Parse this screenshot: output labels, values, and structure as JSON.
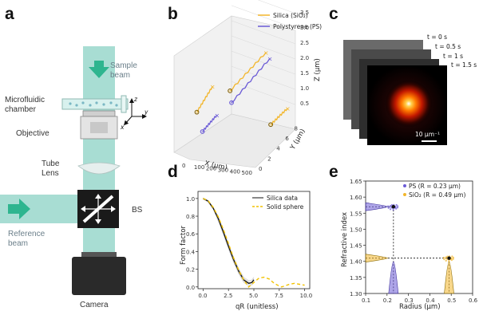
{
  "panels": {
    "a": {
      "letter": "a",
      "labels": {
        "sample_beam": "Sample\nbeam",
        "microfluidic": "Microfluidic\nchamber",
        "objective": "Objective",
        "tube_lens": "Tube\nLens",
        "bs": "BS",
        "reference_beam": "Reference\nbeam",
        "camera": "Camera",
        "axis_z": "z",
        "axis_y": "y",
        "axis_x": "x"
      },
      "colors": {
        "beam": "#a8ddd3",
        "beam_arrow": "#2eb58f",
        "chamber": "#d8f1ee",
        "dark": "#2a2a2a"
      }
    },
    "b": {
      "letter": "b",
      "legend": [
        "Silica (SiO₂)",
        "Polystyrene (PS)"
      ],
      "x_axis_label": "X (μm)",
      "y_axis_label": "Y (μm)",
      "z_axis_label": "Z (μm)",
      "x_ticks": [
        "0",
        "100",
        "200",
        "300",
        "400",
        "500"
      ],
      "y_ticks": [
        "0",
        "2",
        "4",
        "6",
        "8"
      ],
      "z_ticks": [
        "0.5",
        "1.0",
        "1.5",
        "2.0",
        "2.5",
        "3.0",
        "3.5"
      ]
    },
    "c": {
      "letter": "c",
      "time_labels": [
        "t = 0 s",
        "t = 0.5 s",
        "t = 1 s",
        "t = 1.5 s"
      ],
      "scalebar": "10 μm⁻¹"
    },
    "d": {
      "letter": "d",
      "x_axis_label": "qR (unitless)",
      "y_axis_label": "Form factor",
      "legend": [
        "Silica data",
        "Solid sphere"
      ],
      "x_ticks": [
        "0.0",
        "2.5",
        "5.0",
        "7.5",
        "10.0"
      ],
      "y_ticks": [
        "0.0",
        "0.2",
        "0.4",
        "0.6",
        "0.8",
        "1.0"
      ]
    },
    "e": {
      "letter": "e",
      "x_axis_label": "Radius (μm)",
      "y_axis_label": "Refractive index",
      "legend": [
        "PS (R = 0.23 μm)",
        "SiO₂ (R = 0.49 μm)"
      ],
      "x_ticks": [
        "0.1",
        "0.2",
        "0.3",
        "0.4",
        "0.5",
        "0.6"
      ],
      "y_ticks": [
        "1.30",
        "1.35",
        "1.40",
        "1.45",
        "1.50",
        "1.55",
        "1.60",
        "1.65"
      ]
    }
  },
  "colors": {
    "silica": "#f2b62b",
    "ps": "#6b5bd6",
    "solid_sphere": "#f2c200"
  },
  "chart_data": [
    {
      "type": "line",
      "panel": "b",
      "xlabel": "X (μm)",
      "ylabel": "Y (μm)",
      "zlabel": "Z (μm)",
      "xlim": [
        0,
        550
      ],
      "ylim": [
        0,
        9
      ],
      "zlim": [
        0.4,
        3.6
      ],
      "series": [
        {
          "name": "Silica (SiO₂)",
          "color": "#f2b62b",
          "x": [
            20,
            150
          ],
          "y": [
            1.0,
            1.0
          ],
          "z": [
            1.8,
            2.7
          ]
        },
        {
          "name": "Silica (SiO₂)",
          "color": "#f2b62b",
          "x": [
            150,
            450
          ],
          "y": [
            5.0,
            5.0
          ],
          "z": [
            1.9,
            3.3
          ]
        },
        {
          "name": "Silica (SiO₂)",
          "color": "#f2b62b",
          "x": [
            380,
            520
          ],
          "y": [
            8.0,
            8.0
          ],
          "z": [
            0.4,
            1.0
          ]
        },
        {
          "name": "Polystyrene (PS)",
          "color": "#6b5bd6",
          "x": [
            30,
            150
          ],
          "y": [
            2.0,
            2.0
          ],
          "z": [
            1.0,
            1.6
          ]
        },
        {
          "name": "Polystyrene (PS)",
          "color": "#6b5bd6",
          "x": [
            200,
            520
          ],
          "y": [
            4.0,
            4.0
          ],
          "z": [
            1.7,
            3.3
          ]
        }
      ]
    },
    {
      "type": "line",
      "panel": "d",
      "xlabel": "qR (unitless)",
      "ylabel": "Form factor",
      "xlim": [
        -0.5,
        10.5
      ],
      "ylim": [
        -0.02,
        1.08
      ],
      "series": [
        {
          "name": "Silica data",
          "color": "#111111",
          "style": "solid",
          "x": [
            0,
            0.5,
            1.0,
            1.5,
            2.0,
            2.5,
            3.0,
            3.5,
            4.0,
            4.5,
            4.8,
            5.0
          ],
          "y": [
            1.0,
            0.97,
            0.89,
            0.77,
            0.62,
            0.46,
            0.31,
            0.18,
            0.08,
            0.04,
            0.05,
            0.08
          ]
        },
        {
          "name": "Solid sphere",
          "color": "#f2c200",
          "style": "dashed",
          "x": [
            0,
            0.5,
            1.0,
            1.5,
            2.0,
            2.5,
            3.0,
            3.5,
            4.0,
            4.49,
            5.0,
            5.5,
            6.0,
            6.5,
            7.0,
            7.5,
            7.73,
            8.0,
            8.5,
            9.0,
            9.5,
            10.0
          ],
          "y": [
            1.0,
            0.975,
            0.9,
            0.79,
            0.65,
            0.49,
            0.33,
            0.19,
            0.08,
            0.0,
            0.05,
            0.1,
            0.11,
            0.09,
            0.04,
            0.01,
            0.0,
            0.01,
            0.03,
            0.04,
            0.03,
            0.02
          ]
        }
      ]
    },
    {
      "type": "scatter",
      "panel": "e",
      "xlabel": "Radius (μm)",
      "ylabel": "Refractive index",
      "xlim": [
        0.1,
        0.6
      ],
      "ylim": [
        1.3,
        1.65
      ],
      "series": [
        {
          "name": "PS (R = 0.23 μm)",
          "color": "#6b5bd6",
          "radius_mean": 0.23,
          "index_mean": 1.57
        },
        {
          "name": "SiO₂ (R = 0.49 μm)",
          "color": "#f2b62b",
          "radius_mean": 0.49,
          "index_mean": 1.41
        }
      ]
    }
  ]
}
